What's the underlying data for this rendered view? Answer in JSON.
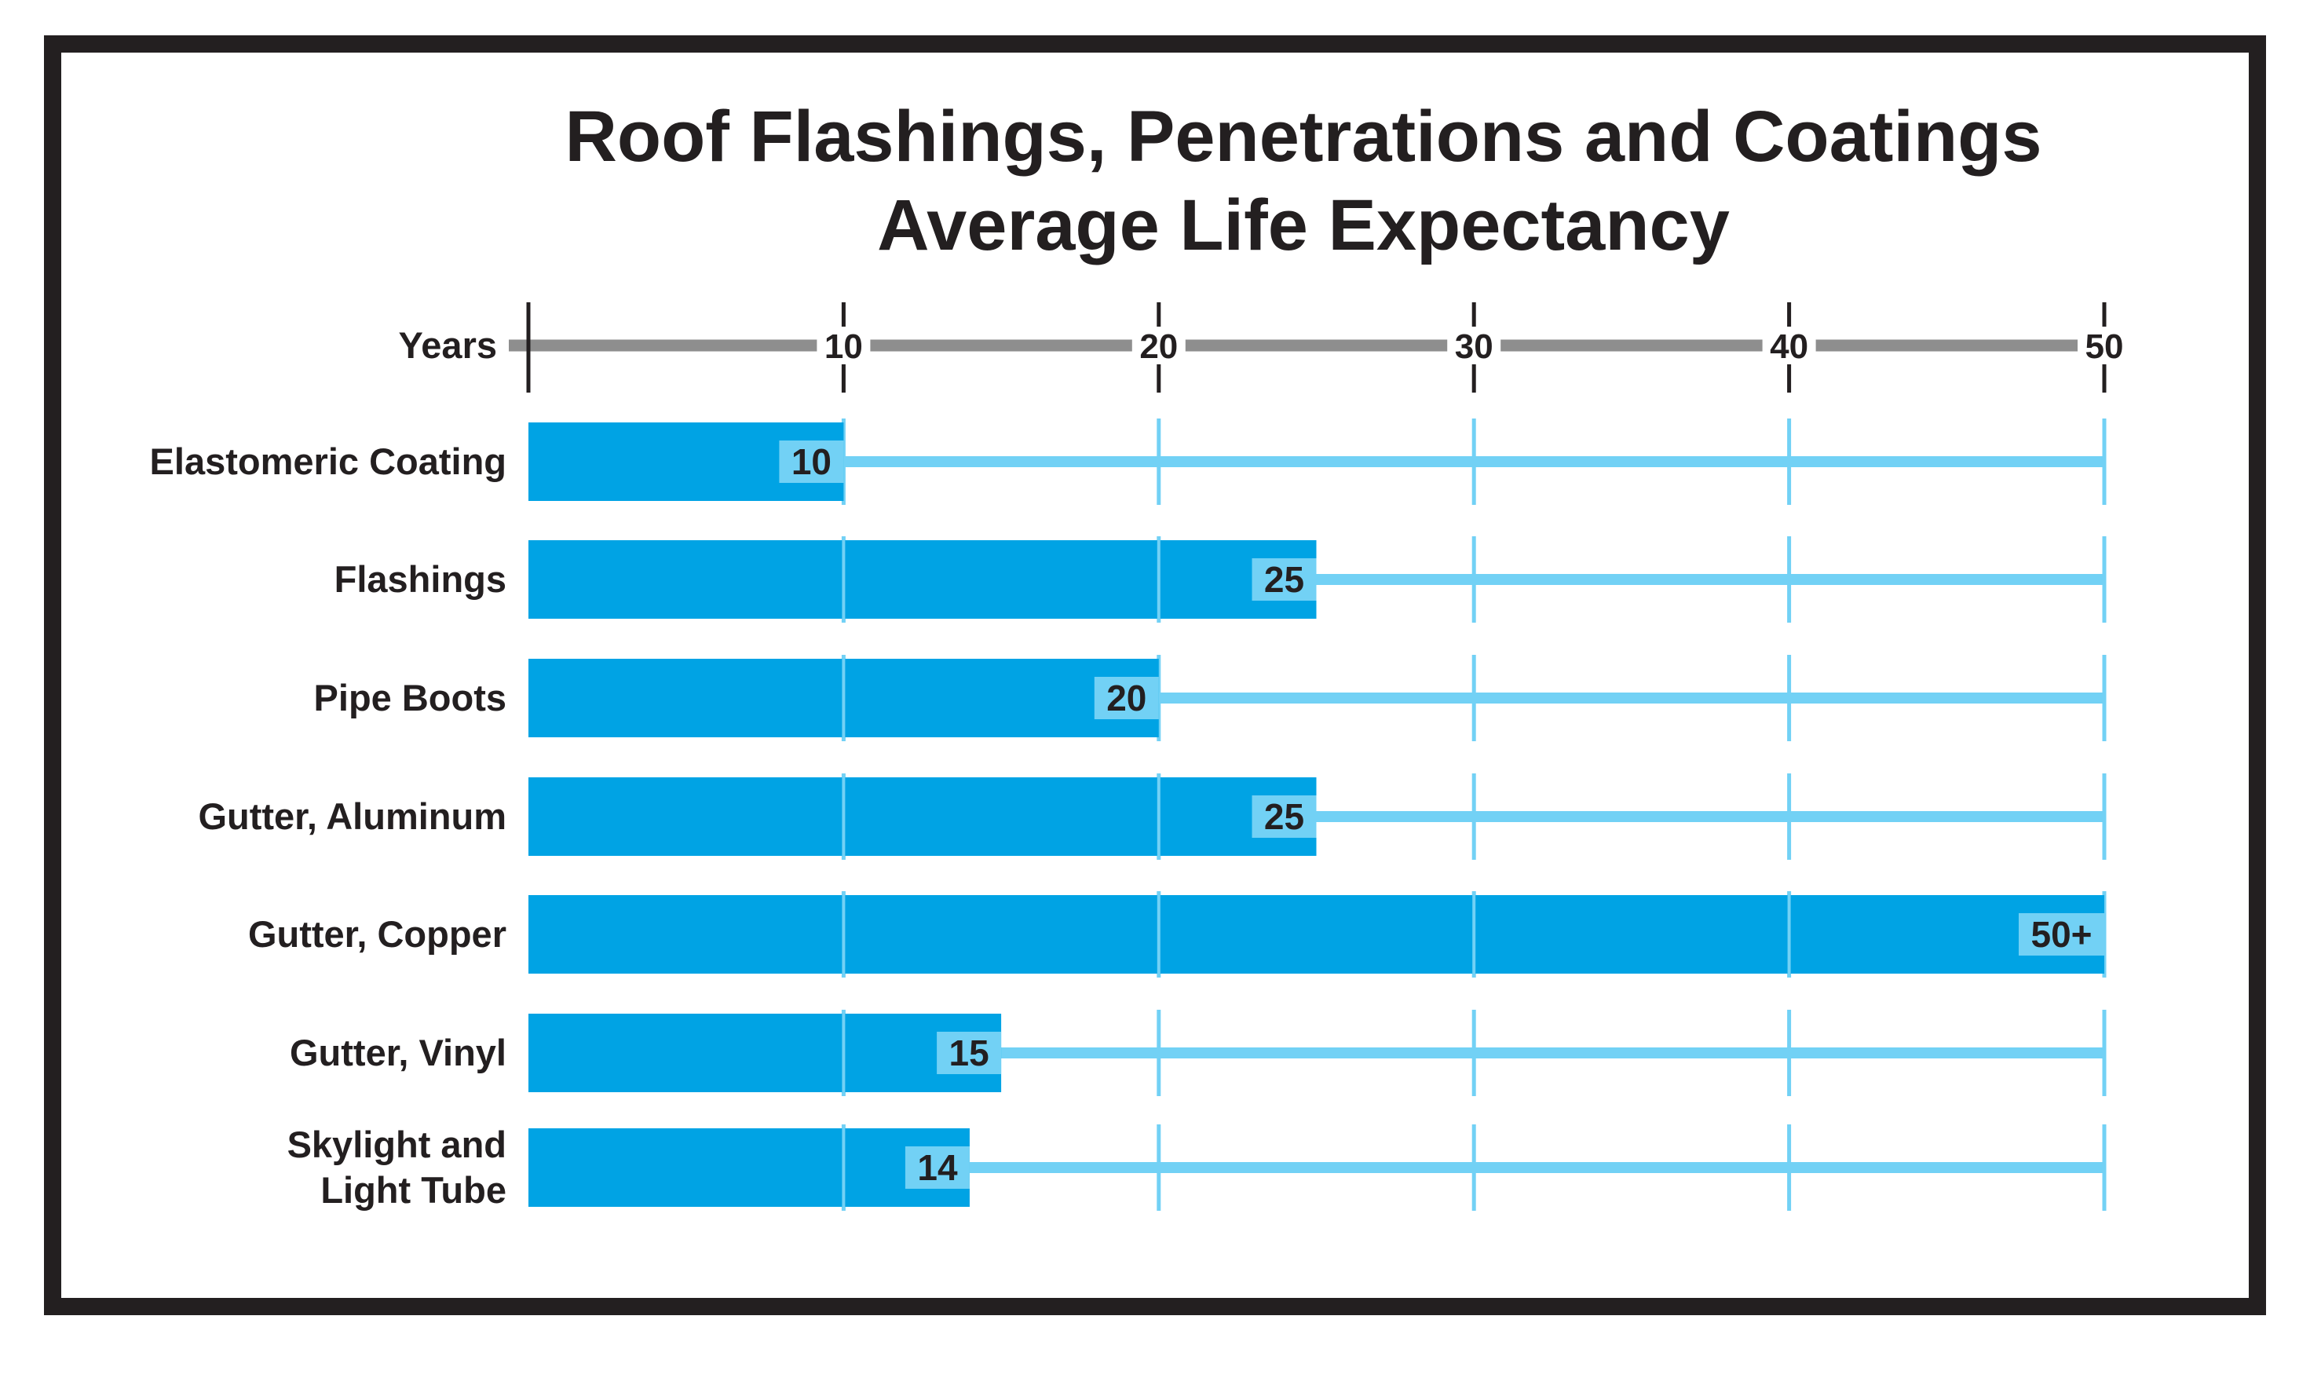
{
  "chart_data": {
    "type": "bar",
    "orientation": "horizontal",
    "title": [
      "Roof Flashings, Penetrations and Coatings",
      "Average Life Expectancy"
    ],
    "xlabel": "Years",
    "xlim": [
      0,
      50
    ],
    "xticks": [
      10,
      20,
      30,
      40,
      50
    ],
    "categories": [
      [
        "Elastomeric Coating"
      ],
      [
        "Flashings"
      ],
      [
        "Pipe Boots"
      ],
      [
        "Gutter, Aluminum"
      ],
      [
        "Gutter, Copper"
      ],
      [
        "Gutter, Vinyl"
      ],
      [
        "Skylight and",
        "Light Tube"
      ]
    ],
    "values": [
      10,
      25,
      20,
      25,
      50,
      15,
      14
    ],
    "value_labels": [
      "10",
      "25",
      "20",
      "25",
      "50+",
      "15",
      "14"
    ],
    "grid": true,
    "legend": "none"
  },
  "colors": {
    "bar": "#00a3e4",
    "track": "#72d1f5",
    "value_box": "#72d1f5",
    "axis": "#8e8e8e",
    "tick": "#231f20",
    "frame": "#231f20",
    "text": "#231f20"
  }
}
